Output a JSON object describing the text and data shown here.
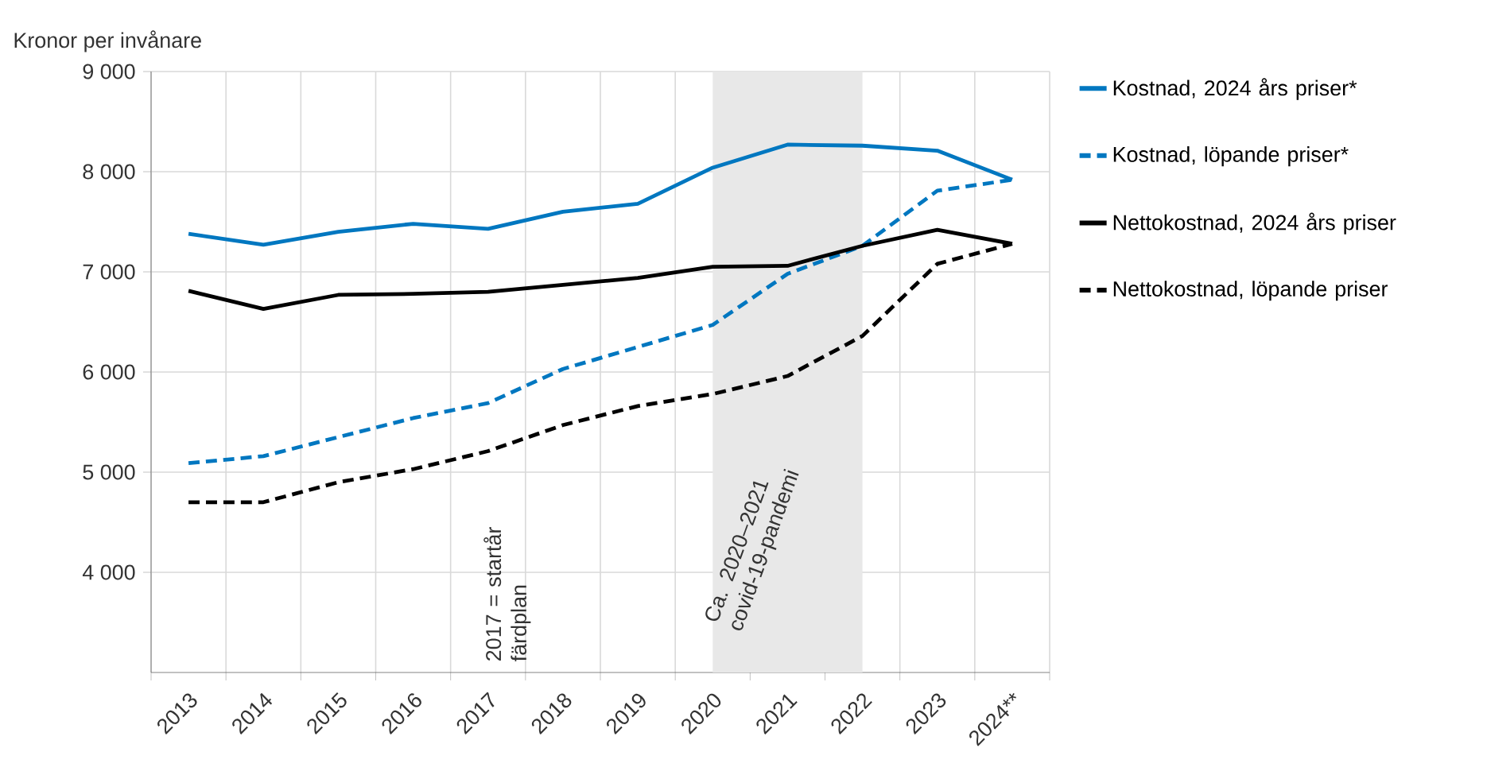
{
  "chart_data": {
    "type": "line",
    "ylabel": "Kronor per invånare",
    "categories": [
      "2013",
      "2014",
      "2015",
      "2016",
      "2017",
      "2018",
      "2019",
      "2020",
      "2021",
      "2022",
      "2023",
      "2024**"
    ],
    "series": [
      {
        "name": "Kostnad, 2024 års priser*",
        "color": "#0077c0",
        "line_style": "solid",
        "values": [
          7380,
          7270,
          7400,
          7480,
          7430,
          7600,
          7680,
          8040,
          8270,
          8260,
          8210,
          7920
        ]
      },
      {
        "name": "Kostnad, löpande priser*",
        "color": "#0077c0",
        "line_style": "dashed",
        "values": [
          5090,
          5160,
          5350,
          5540,
          5690,
          6030,
          6250,
          6470,
          6980,
          7260,
          7810,
          7920
        ]
      },
      {
        "name": "Nettokostnad, 2024 års priser",
        "color": "#000000",
        "line_style": "solid",
        "values": [
          6810,
          6630,
          6770,
          6780,
          6800,
          6870,
          6940,
          7050,
          7060,
          7260,
          7420,
          7280
        ]
      },
      {
        "name": "Nettokostnad, löpande priser",
        "color": "#000000",
        "line_style": "dashed",
        "values": [
          4700,
          4700,
          4900,
          5030,
          5210,
          5470,
          5660,
          5780,
          5960,
          6360,
          7080,
          7280
        ]
      }
    ],
    "ylim": [
      3000,
      9000
    ],
    "yticks": [
      {
        "value": 4000,
        "label": "4 000"
      },
      {
        "value": 5000,
        "label": "5 000"
      },
      {
        "value": 6000,
        "label": "6 000"
      },
      {
        "value": 7000,
        "label": "7 000"
      },
      {
        "value": 8000,
        "label": "8 000"
      },
      {
        "value": 9000,
        "label": "9 000"
      }
    ],
    "grid": true,
    "legend": "right",
    "marker": "none",
    "bands": [
      {
        "axis": "x",
        "from": "2020",
        "to": "2022",
        "label": "Ca. 2020–2021 covid-19-pandemi",
        "color": "#e8e8e8"
      }
    ],
    "annotations": [
      "2017 = startår färdplan"
    ]
  }
}
